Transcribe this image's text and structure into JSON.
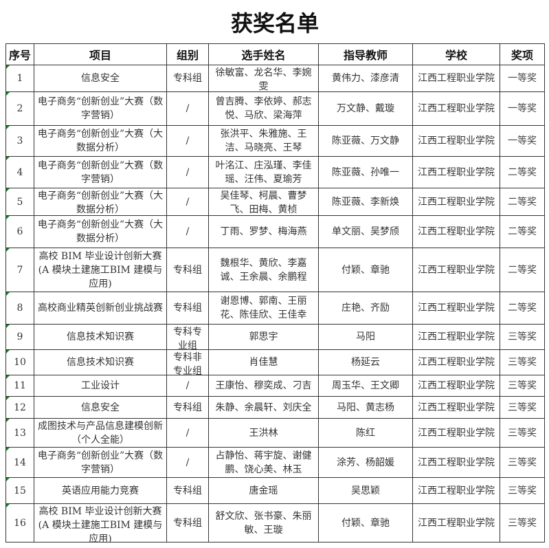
{
  "title": "获奖名单",
  "headers": [
    "序号",
    "项目",
    "组别",
    "选手姓名",
    "指导教师",
    "学校",
    "奖项"
  ],
  "rows": [
    {
      "no": "1",
      "project": "信息安全",
      "group": "专科组",
      "students": "徐敏富、龙名华、李婉雯",
      "teachers": "黄伟力、漆彦清",
      "school": "江西工程职业学院",
      "award": "一等奖"
    },
    {
      "no": "2",
      "project": "电子商务“创新创业”大赛（数字营销）",
      "group": "/",
      "students": "曾吉腾、李依婷、郝志悦、马欣、梁海萍",
      "teachers": "万文静、戴璇",
      "school": "江西工程职业学院",
      "award": "一等奖"
    },
    {
      "no": "3",
      "project": "电子商务“创新创业”大赛（大数据分析）",
      "group": "/",
      "students": "张洪平、朱雅施、王洁、马晓亮、王琴",
      "teachers": "陈亚薇、万文静",
      "school": "江西工程职业学院",
      "award": "一等奖"
    },
    {
      "no": "4",
      "project": "电子商务“创新创业”大赛（数字营销）",
      "group": "/",
      "students": "叶洺江、庄泓瑾、李佳瑶、汪伟、夏瑜芳",
      "teachers": "陈亚薇、孙唯一",
      "school": "江西工程职业学院",
      "award": "二等奖"
    },
    {
      "no": "5",
      "project": "电子商务“创新创业”大赛（大数据分析）",
      "group": "/",
      "students": "吴佳琴、柯晨、曹梦飞、田梅、黄桢",
      "teachers": "陈亚薇、李新焕",
      "school": "江西工程职业学院",
      "award": "二等奖"
    },
    {
      "no": "6",
      "project": "电子商务“创新创业”大赛（大数据分析）",
      "group": "/",
      "students": "丁雨、罗梦、梅海燕",
      "teachers": "单文丽、吴梦颀",
      "school": "江西工程职业学院",
      "award": "二等奖"
    },
    {
      "no": "7",
      "project": "高校 BIM 毕业设计创新大赛(A 模块土建施工BIM 建模与应用)",
      "group": "专科组",
      "students": "魏根华、黄欣、李嘉诚、王余晨、余鹏程",
      "teachers": "付颖、章驰",
      "school": "江西工程职业学院",
      "award": "二等奖"
    },
    {
      "no": "8",
      "project": "高校商业精英创新创业挑战赛",
      "group": "专科组",
      "students": "谢恩博、郭南、王丽花、陈佳欣、王佳幸",
      "teachers": "庄艳、齐励",
      "school": "江西工程职业学院",
      "award": "二等奖"
    },
    {
      "no": "9",
      "project": "信息技术知识赛",
      "group": "专科专业组",
      "students": "郭思宇",
      "teachers": "马阳",
      "school": "江西工程职业学院",
      "award": "三等奖"
    },
    {
      "no": "10",
      "project": "信息技术知识赛",
      "group": "专科非专业组",
      "students": "肖佳慧",
      "teachers": "杨延云",
      "school": "江西工程职业学院",
      "award": "三等奖"
    },
    {
      "no": "11",
      "project": "工业设计",
      "group": "/",
      "students": "王康怡、穆奕成、刁吉",
      "teachers": "周玉华、王文卿",
      "school": "江西工程职业学院",
      "award": "三等奖"
    },
    {
      "no": "12",
      "project": "信息安全",
      "group": "专科组",
      "students": "朱静、余晨轩、刘庆全",
      "teachers": "马阳、黄志杨",
      "school": "江西工程职业学院",
      "award": "三等奖"
    },
    {
      "no": "13",
      "project": "成图技术与产品信息建模创新（个人全能）",
      "group": "/",
      "students": "王洪林",
      "teachers": "陈红",
      "school": "江西工程职业学院",
      "award": "三等奖"
    },
    {
      "no": "14",
      "project": "电子商务“创新创业”大赛（数字营销）",
      "group": "/",
      "students": "占静怡、蒋宇旋、谢健鹏、饶心美、林玉",
      "teachers": "涂芳、杨韶媛",
      "school": "江西工程职业学院",
      "award": "三等奖"
    },
    {
      "no": "15",
      "project": "英语应用能力竞赛",
      "group": "专科组",
      "students": "唐金瑶",
      "teachers": "吴思颖",
      "school": "江西工程职业学院",
      "award": "三等奖"
    },
    {
      "no": "16",
      "project": "高校 BIM 毕业设计创新大赛(A 模块土建施工BIM 建模与应用)",
      "group": "专科组",
      "students": "舒文欣、张书豪、朱丽敏、王璇",
      "teachers": "付颖、章驰",
      "school": "江西工程职业学院",
      "award": "三等奖"
    }
  ]
}
